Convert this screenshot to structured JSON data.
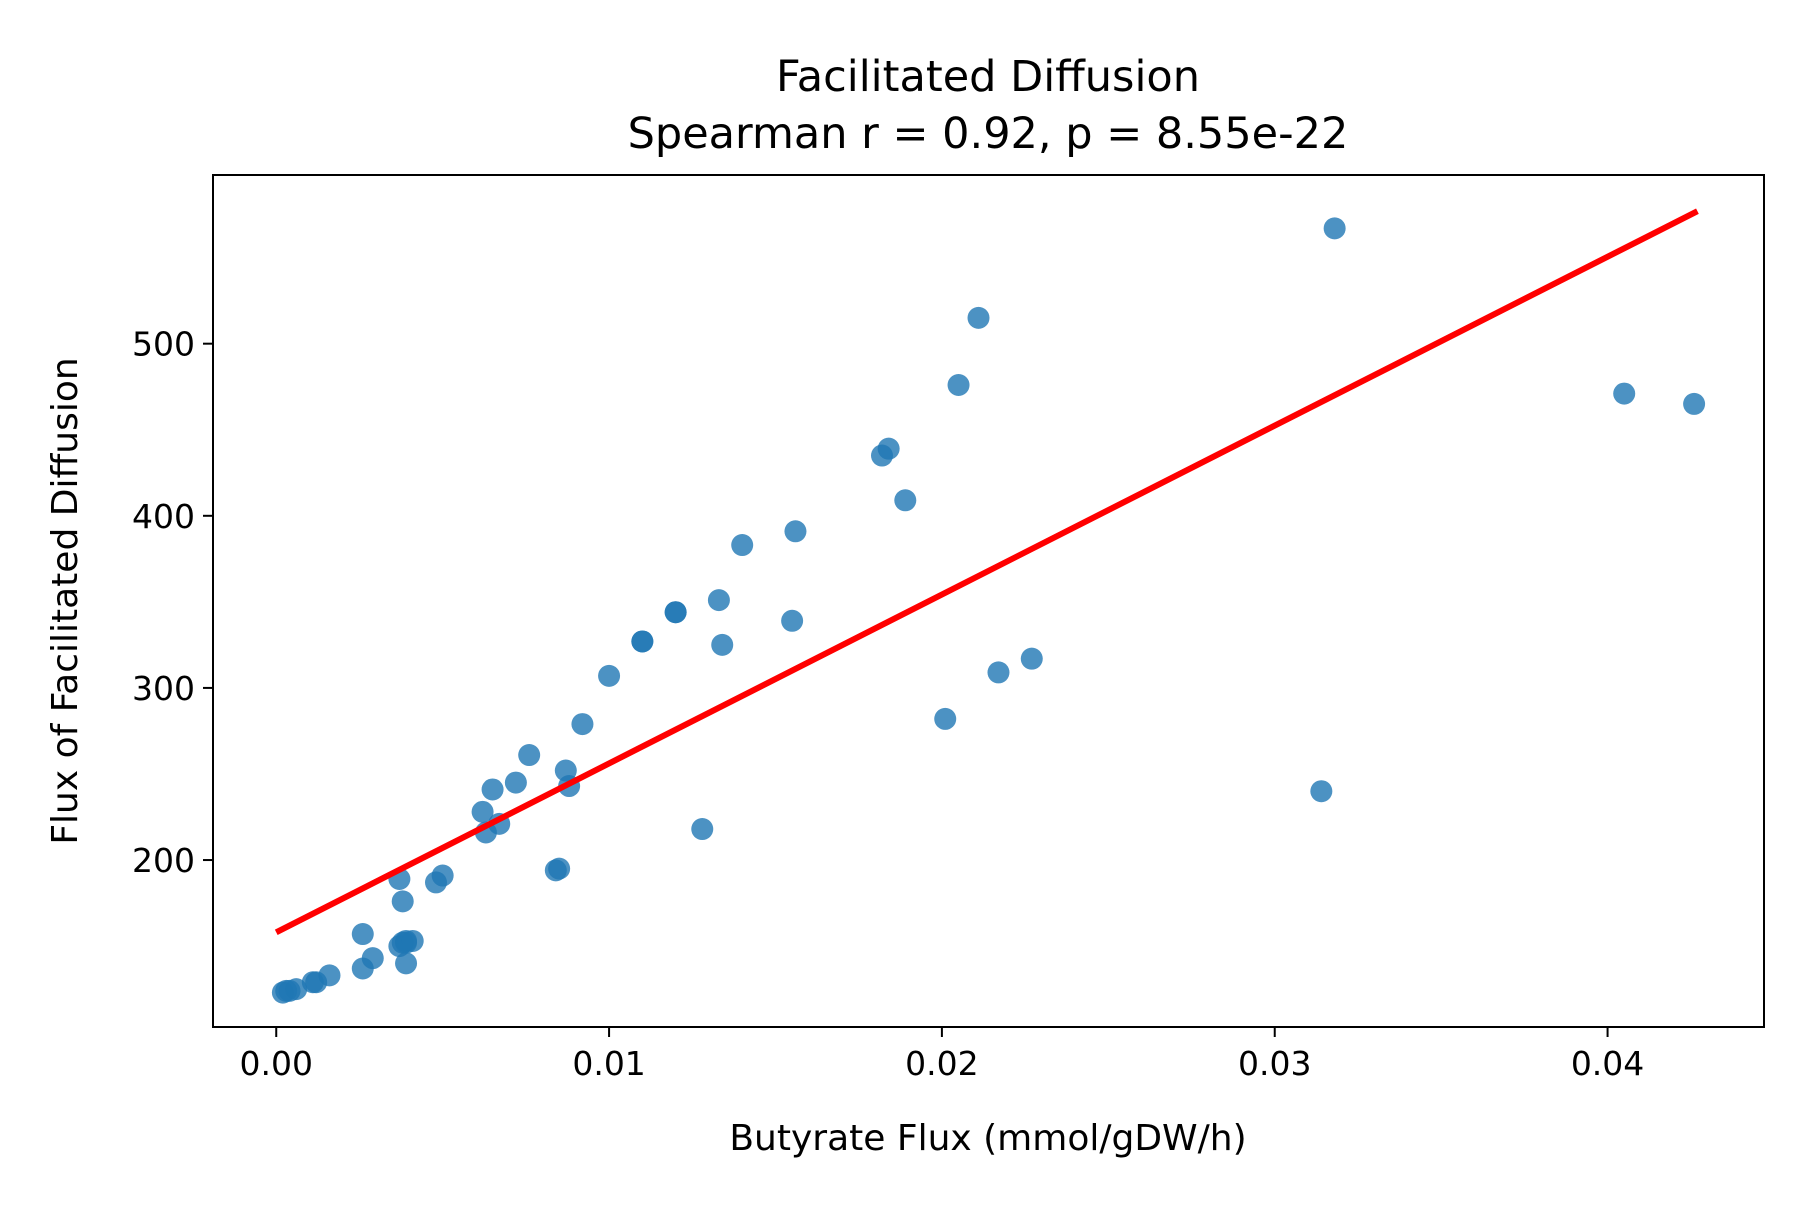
{
  "chart_data": {
    "type": "scatter",
    "title": "Facilitated Diffusion",
    "subtitle": "Spearman r = 0.92, p = 8.55e-22",
    "xlabel": "Butyrate Flux (mmol/gDW/h)",
    "ylabel": "Flux of Facilitated Diffusion",
    "xlim": [
      -0.0019,
      0.0447
    ],
    "ylim": [
      103,
      598
    ],
    "xticks": [
      0.0,
      0.01,
      0.02,
      0.03,
      0.04
    ],
    "xtick_labels": [
      "0.00",
      "0.01",
      "0.02",
      "0.03",
      "0.04"
    ],
    "yticks": [
      200,
      300,
      400,
      500
    ],
    "ytick_labels": [
      "200",
      "300",
      "400",
      "500"
    ],
    "grid": false,
    "legend": "none",
    "colors": {
      "points": "#1f77b4",
      "fit_line": "#ff0000"
    },
    "series": [
      {
        "x": [
          0.0002,
          0.0003,
          0.0004,
          0.0006,
          0.0011,
          0.0012,
          0.0016,
          0.0026,
          0.0026,
          0.0029,
          0.0037,
          0.0037,
          0.0038,
          0.0039,
          0.0039,
          0.0041,
          0.0039,
          0.0038,
          0.0048,
          0.005,
          0.0062,
          0.0063,
          0.0065,
          0.0067,
          0.0072,
          0.0076,
          0.0084,
          0.0085,
          0.0087,
          0.0088,
          0.0092,
          0.01,
          0.011,
          0.011,
          0.012,
          0.012,
          0.0128,
          0.0133,
          0.0134,
          0.014,
          0.0155,
          0.0156,
          0.0182,
          0.0184,
          0.0189,
          0.0201,
          0.0205,
          0.0211,
          0.0217,
          0.0227,
          0.0314,
          0.0318,
          0.0405,
          0.0426
        ],
        "y": [
          123,
          124,
          124,
          125,
          129,
          129,
          133,
          137,
          157,
          143,
          189,
          150,
          152,
          153,
          152,
          153,
          140,
          176,
          187,
          191,
          228,
          216,
          241,
          221,
          245,
          261,
          194,
          195,
          252,
          243,
          279,
          307,
          327,
          327,
          344,
          344,
          218,
          351,
          325,
          383,
          339,
          391,
          435,
          439,
          409,
          282,
          476,
          515,
          309,
          317,
          240,
          567,
          471,
          465
        ]
      }
    ],
    "fit_line": {
      "x": [
        0.0,
        0.0427
      ],
      "y": [
        158,
        577
      ]
    }
  }
}
